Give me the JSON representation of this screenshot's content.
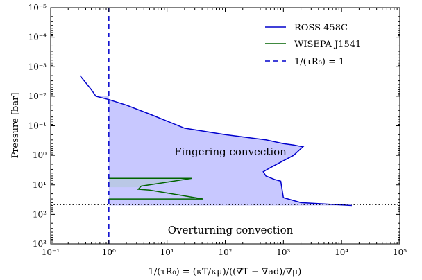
{
  "chart_data": {
    "type": "line",
    "title": "",
    "xlabel": "1/(τR₀) = (κT/κμ)/((∇T − ∇ad)/∇μ)",
    "ylabel": "Pressure [bar]",
    "x_scale": "log",
    "y_scale": "log",
    "y_inverted": true,
    "xlim": [
      0.1,
      100000
    ],
    "ylim": [
      1000,
      1e-05
    ],
    "x_ticks": [
      {
        "value": 0.1,
        "label": "10⁻¹"
      },
      {
        "value": 1,
        "label": "10⁰"
      },
      {
        "value": 10,
        "label": "10¹"
      },
      {
        "value": 100,
        "label": "10²"
      },
      {
        "value": 1000,
        "label": "10³"
      },
      {
        "value": 10000,
        "label": "10⁴"
      },
      {
        "value": 100000,
        "label": "10⁵"
      }
    ],
    "y_ticks": [
      {
        "value": 1e-05,
        "label": "10⁻⁵"
      },
      {
        "value": 0.0001,
        "label": "10⁻⁴"
      },
      {
        "value": 0.001,
        "label": "10⁻³"
      },
      {
        "value": 0.01,
        "label": "10⁻²"
      },
      {
        "value": 0.1,
        "label": "10⁻¹"
      },
      {
        "value": 1,
        "label": "10⁰"
      },
      {
        "value": 10,
        "label": "10¹"
      },
      {
        "value": 100,
        "label": "10²"
      },
      {
        "value": 1000,
        "label": "10³"
      }
    ],
    "legend": {
      "placement": "top-right",
      "entries": [
        {
          "label": "ROSS 458C",
          "style": "solid",
          "color": "#0000cc"
        },
        {
          "label": "WISEPA J1541",
          "style": "solid",
          "color": "#006400"
        },
        {
          "label": "1/(τR₀) = 1",
          "style": "dashed",
          "color": "#0000cc"
        }
      ]
    },
    "series": [
      {
        "name": "ROSS 458C",
        "color": "#0000cc",
        "x": [
          0.32,
          0.5,
          0.6,
          1.0,
          2.0,
          5.0,
          20,
          100,
          500,
          1000,
          1500,
          2000,
          2200,
          1500,
          900,
          600,
          450,
          500,
          700,
          900,
          1000,
          2000,
          15000
        ],
        "y": [
          0.002,
          0.006,
          0.01,
          0.013,
          0.02,
          0.04,
          0.12,
          0.2,
          0.3,
          0.4,
          0.45,
          0.5,
          0.5,
          1.0,
          1.7,
          2.6,
          3.6,
          5.0,
          6.5,
          7.5,
          27,
          40,
          50
        ]
      },
      {
        "name": "WISEPA J1541",
        "color": "#006400",
        "x": [
          1.0,
          27,
          3.6,
          3.2,
          5.0,
          42,
          1.0
        ],
        "y": [
          6.0,
          6.0,
          11,
          14,
          15,
          30,
          30
        ]
      }
    ],
    "vertical_line": {
      "x": 1,
      "style": "dashed",
      "color": "#0000cc"
    },
    "horizontal_line": {
      "y": 47,
      "style": "dotted",
      "color": "#000000"
    },
    "shaded_region": {
      "color": "#c8c8ff"
    },
    "annotations": [
      {
        "text": "Fingering convection",
        "x": 150,
        "y": 2
      },
      {
        "text": "Overturning convection",
        "x": 150,
        "y": 550
      }
    ]
  }
}
